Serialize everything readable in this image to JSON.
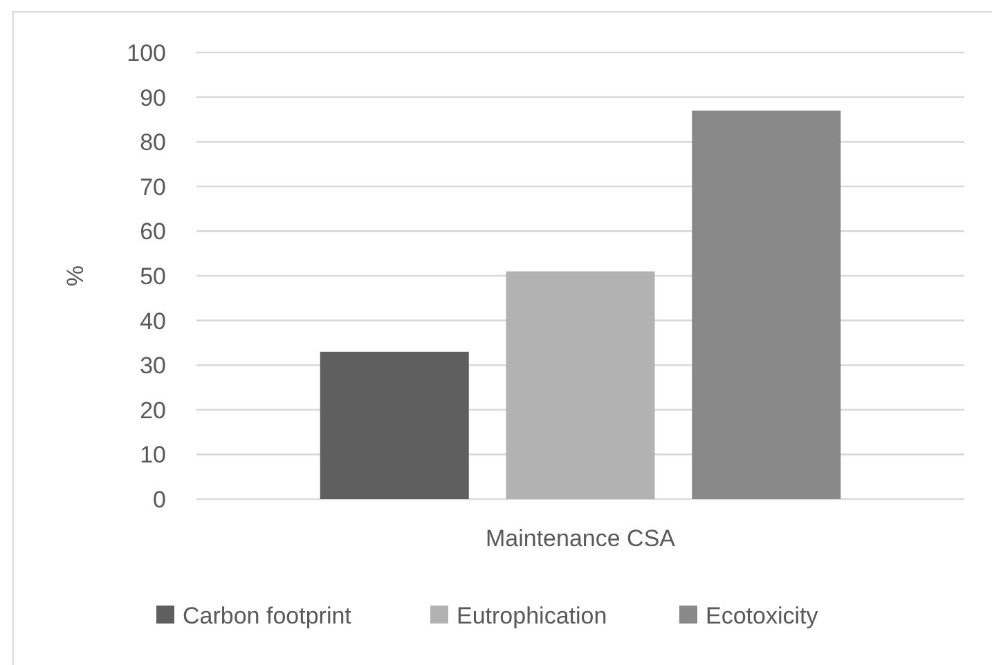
{
  "chart_data": {
    "type": "bar",
    "ylabel": "%",
    "categories": [
      "Maintenance CSA"
    ],
    "series": [
      {
        "name": "Carbon footprint",
        "color": "#5f5f5f",
        "values": [
          33
        ]
      },
      {
        "name": "Eutrophication",
        "color": "#b2b2b2",
        "values": [
          51
        ]
      },
      {
        "name": "Ecotoxicity",
        "color": "#898989",
        "values": [
          87
        ]
      }
    ],
    "ylim": [
      0,
      100
    ],
    "yticks": [
      0,
      10,
      20,
      30,
      40,
      50,
      60,
      70,
      80,
      90,
      100
    ],
    "grid": "y",
    "legend": "bottom"
  }
}
